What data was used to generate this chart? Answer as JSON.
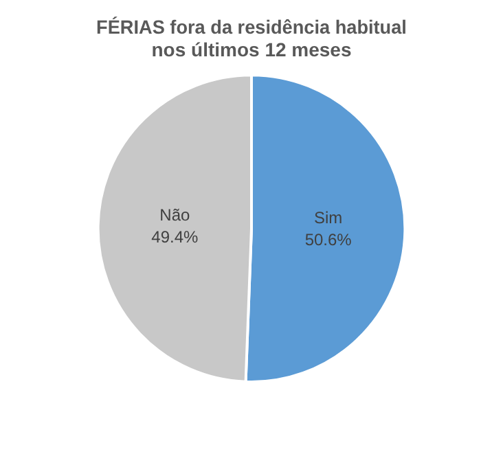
{
  "chart_data": {
    "type": "pie",
    "title": "FÉRIAS fora da residência habitual\nnos últimos 12 meses",
    "categories": [
      "Sim",
      "Não"
    ],
    "values": [
      50.6,
      49.4
    ],
    "value_labels": [
      "50.6%",
      "49.4%"
    ],
    "colors": [
      "#5b9bd5",
      "#c8c8c8"
    ],
    "legend": false
  }
}
